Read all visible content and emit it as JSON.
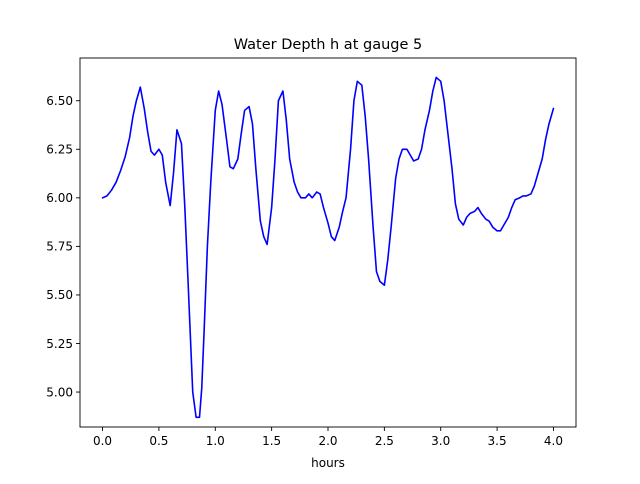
{
  "chart_data": {
    "type": "line",
    "title": "Water Depth h at gauge 5",
    "xlabel": "hours",
    "ylabel": "",
    "xlim": [
      -0.2,
      4.2
    ],
    "ylim": [
      4.82,
      6.72
    ],
    "xticks": [
      0.0,
      0.5,
      1.0,
      1.5,
      2.0,
      2.5,
      3.0,
      3.5,
      4.0
    ],
    "xtick_labels": [
      "0.0",
      "0.5",
      "1.0",
      "1.5",
      "2.0",
      "2.5",
      "3.0",
      "3.5",
      "4.0"
    ],
    "yticks": [
      5.0,
      5.25,
      5.5,
      5.75,
      6.0,
      6.25,
      6.5
    ],
    "ytick_labels": [
      "5.00",
      "5.25",
      "5.50",
      "5.75",
      "6.00",
      "6.25",
      "6.50"
    ],
    "grid": false,
    "series": [
      {
        "color": "#0000ff",
        "x": [
          0.0,
          0.04,
          0.08,
          0.12,
          0.16,
          0.2,
          0.24,
          0.27,
          0.3,
          0.335,
          0.37,
          0.4,
          0.43,
          0.46,
          0.5,
          0.53,
          0.56,
          0.6,
          0.63,
          0.66,
          0.7,
          0.73,
          0.76,
          0.8,
          0.83,
          0.86,
          0.88,
          0.9,
          0.93,
          0.96,
          1.0,
          1.03,
          1.06,
          1.1,
          1.13,
          1.16,
          1.2,
          1.23,
          1.26,
          1.3,
          1.33,
          1.36,
          1.4,
          1.43,
          1.46,
          1.5,
          1.53,
          1.56,
          1.6,
          1.63,
          1.66,
          1.7,
          1.73,
          1.76,
          1.8,
          1.83,
          1.86,
          1.9,
          1.93,
          1.96,
          2.0,
          2.03,
          2.06,
          2.1,
          2.13,
          2.16,
          2.2,
          2.23,
          2.26,
          2.3,
          2.33,
          2.36,
          2.4,
          2.43,
          2.46,
          2.5,
          2.53,
          2.56,
          2.6,
          2.63,
          2.66,
          2.7,
          2.73,
          2.76,
          2.8,
          2.83,
          2.86,
          2.9,
          2.93,
          2.96,
          3.0,
          3.03,
          3.06,
          3.1,
          3.13,
          3.16,
          3.2,
          3.23,
          3.26,
          3.3,
          3.33,
          3.36,
          3.4,
          3.43,
          3.46,
          3.5,
          3.53,
          3.56,
          3.6,
          3.63,
          3.66,
          3.7,
          3.73,
          3.76,
          3.8,
          3.83,
          3.86,
          3.9,
          3.93,
          3.96,
          4.0
        ],
        "y": [
          6.0,
          6.01,
          6.04,
          6.08,
          6.14,
          6.21,
          6.31,
          6.42,
          6.5,
          6.57,
          6.46,
          6.34,
          6.24,
          6.22,
          6.25,
          6.22,
          6.08,
          5.96,
          6.13,
          6.35,
          6.28,
          5.95,
          5.55,
          5.0,
          4.87,
          4.87,
          5.02,
          5.3,
          5.75,
          6.08,
          6.45,
          6.55,
          6.48,
          6.3,
          6.16,
          6.15,
          6.2,
          6.33,
          6.45,
          6.47,
          6.38,
          6.15,
          5.88,
          5.8,
          5.76,
          5.95,
          6.2,
          6.5,
          6.55,
          6.4,
          6.2,
          6.08,
          6.03,
          6.0,
          6.0,
          6.02,
          6.0,
          6.03,
          6.02,
          5.95,
          5.87,
          5.8,
          5.78,
          5.85,
          5.93,
          6.0,
          6.25,
          6.5,
          6.6,
          6.58,
          6.42,
          6.2,
          5.85,
          5.62,
          5.57,
          5.55,
          5.68,
          5.85,
          6.1,
          6.2,
          6.25,
          6.25,
          6.22,
          6.19,
          6.2,
          6.25,
          6.35,
          6.45,
          6.55,
          6.62,
          6.6,
          6.5,
          6.35,
          6.15,
          5.97,
          5.89,
          5.86,
          5.9,
          5.92,
          5.93,
          5.95,
          5.92,
          5.89,
          5.88,
          5.85,
          5.83,
          5.83,
          5.86,
          5.9,
          5.95,
          5.99,
          6.0,
          6.01,
          6.01,
          6.02,
          6.06,
          6.12,
          6.2,
          6.3,
          6.38,
          6.46
        ]
      }
    ]
  }
}
